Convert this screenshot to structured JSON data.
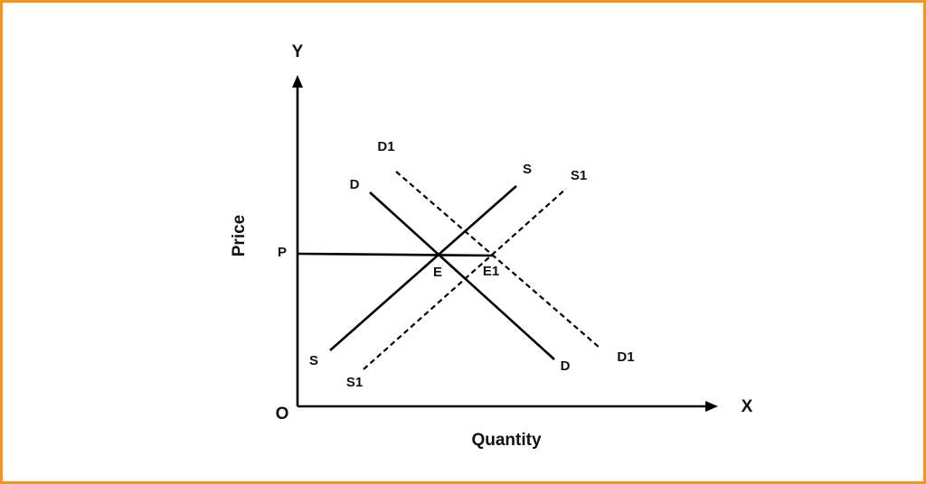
{
  "axes": {
    "y_letter": "Y",
    "x_letter": "X",
    "origin": "O",
    "y_title": "Price",
    "x_title": "Quantity"
  },
  "price_level": "P",
  "curves": [
    {
      "labels": [
        "D",
        "D"
      ]
    },
    {
      "labels": [
        "S",
        "S"
      ]
    },
    {
      "labels": [
        "D1",
        "D1"
      ]
    },
    {
      "labels": [
        "S1",
        "S1"
      ]
    }
  ],
  "points": [
    "E",
    "E1"
  ]
}
